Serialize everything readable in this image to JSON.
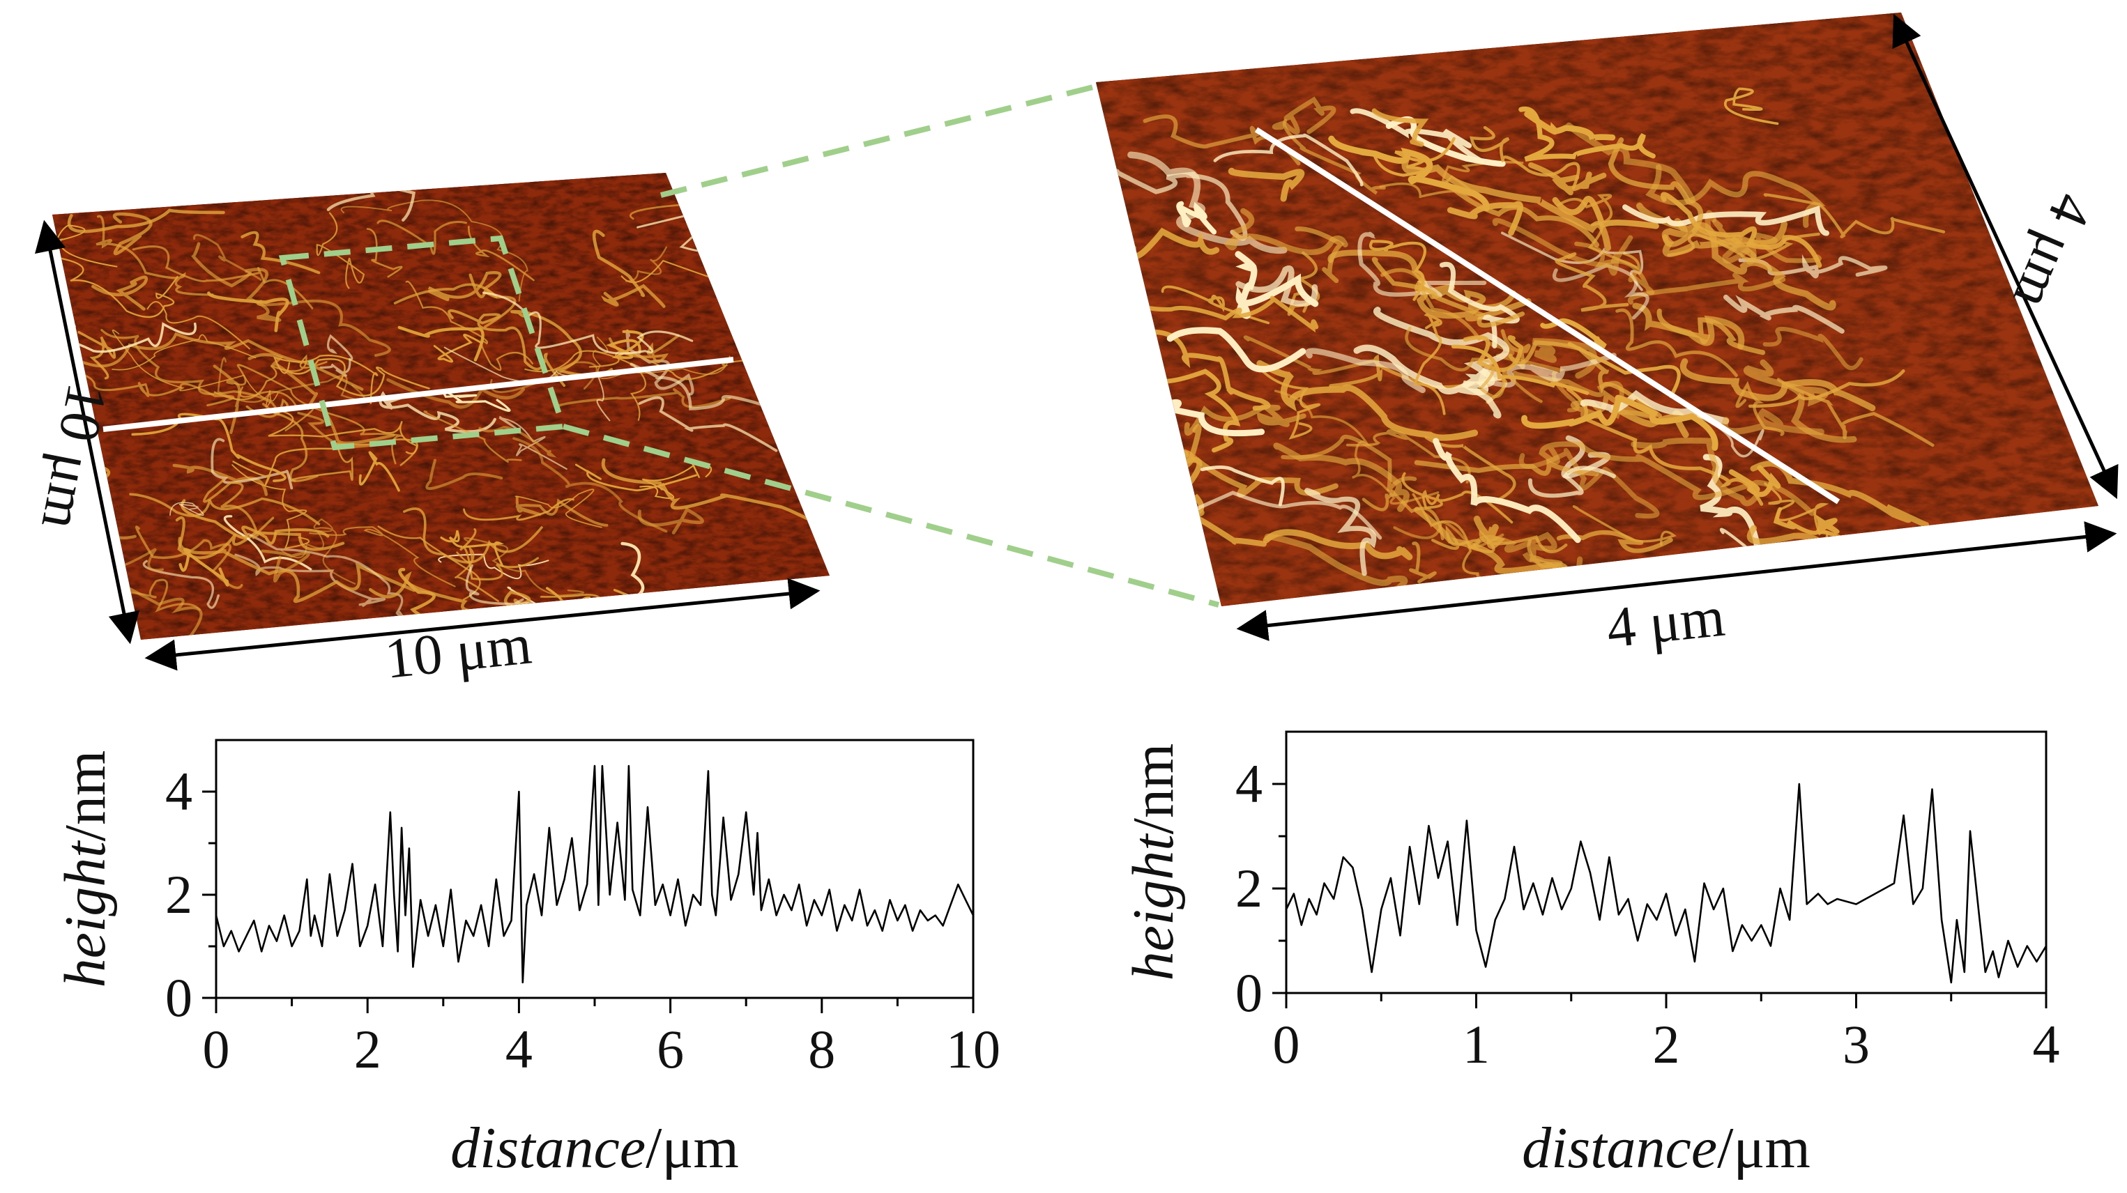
{
  "figure": {
    "left_scan": {
      "width_label": "10 μm",
      "height_label": "10 μm",
      "colors": {
        "dark": "#5a0f04",
        "mid": "#8e2a0c",
        "fiber": "#e0a23a",
        "highlight": "#ffe9b0"
      }
    },
    "right_scan": {
      "width_label": "4 μm",
      "height_label": "4 μm",
      "colors": {
        "dark": "#6a1606",
        "mid": "#9a3410",
        "fiber": "#e3a83e",
        "highlight": "#fff0c4"
      }
    },
    "zoom_box_color": "#9fcf8a",
    "profile_line_color": "#ffffff"
  },
  "chart_data": [
    {
      "type": "line",
      "title": "",
      "xlabel_italic": "distance",
      "xlabel_unit": "/μm",
      "ylabel_italic": "height",
      "ylabel_unit": "/nm",
      "xlim": [
        0,
        10
      ],
      "ylim": [
        0,
        5
      ],
      "xticks": [
        0,
        2,
        4,
        6,
        8,
        10
      ],
      "yticks": [
        0,
        2,
        4
      ],
      "series": [
        {
          "name": "profile-10um",
          "x": [
            0,
            0.1,
            0.2,
            0.3,
            0.4,
            0.5,
            0.6,
            0.7,
            0.8,
            0.9,
            1.0,
            1.1,
            1.2,
            1.25,
            1.3,
            1.4,
            1.5,
            1.6,
            1.7,
            1.8,
            1.9,
            2.0,
            2.1,
            2.2,
            2.3,
            2.35,
            2.4,
            2.45,
            2.5,
            2.55,
            2.6,
            2.7,
            2.8,
            2.9,
            3.0,
            3.1,
            3.2,
            3.3,
            3.4,
            3.5,
            3.6,
            3.7,
            3.8,
            3.9,
            4.0,
            4.05,
            4.1,
            4.2,
            4.3,
            4.4,
            4.5,
            4.6,
            4.7,
            4.8,
            4.9,
            5.0,
            5.05,
            5.1,
            5.2,
            5.3,
            5.4,
            5.45,
            5.5,
            5.6,
            5.7,
            5.8,
            5.9,
            6.0,
            6.1,
            6.2,
            6.3,
            6.4,
            6.5,
            6.55,
            6.6,
            6.7,
            6.8,
            6.9,
            7.0,
            7.1,
            7.15,
            7.2,
            7.3,
            7.4,
            7.5,
            7.6,
            7.7,
            7.8,
            7.9,
            8.0,
            8.1,
            8.2,
            8.3,
            8.4,
            8.5,
            8.6,
            8.7,
            8.8,
            8.9,
            9.0,
            9.1,
            9.2,
            9.3,
            9.4,
            9.5,
            9.6,
            9.7,
            9.8,
            9.9,
            10.0
          ],
          "y": [
            1.6,
            1.0,
            1.3,
            0.9,
            1.2,
            1.5,
            0.9,
            1.4,
            1.1,
            1.6,
            1.0,
            1.3,
            2.3,
            1.2,
            1.6,
            1.0,
            2.4,
            1.2,
            1.7,
            2.6,
            1.0,
            1.4,
            2.2,
            1.0,
            3.6,
            2.0,
            0.9,
            3.3,
            1.6,
            2.9,
            0.6,
            1.9,
            1.2,
            1.8,
            1.0,
            2.1,
            0.7,
            1.5,
            1.2,
            1.8,
            1.0,
            2.3,
            1.2,
            1.5,
            4.0,
            0.3,
            1.8,
            2.4,
            1.6,
            3.3,
            1.8,
            2.3,
            3.1,
            1.7,
            2.2,
            4.5,
            1.8,
            4.5,
            2.0,
            3.4,
            1.9,
            4.5,
            2.1,
            1.6,
            3.7,
            1.8,
            2.2,
            1.6,
            2.3,
            1.4,
            2.0,
            1.8,
            4.4,
            2.0,
            1.6,
            3.5,
            1.9,
            2.4,
            3.6,
            2.0,
            3.2,
            1.7,
            2.3,
            1.6,
            2.0,
            1.7,
            2.2,
            1.4,
            1.9,
            1.6,
            2.1,
            1.3,
            1.8,
            1.5,
            2.1,
            1.4,
            1.7,
            1.3,
            1.9,
            1.5,
            1.8,
            1.3,
            1.7,
            1.5,
            1.6,
            1.4,
            1.8,
            2.2,
            1.9,
            1.6
          ]
        }
      ]
    },
    {
      "type": "line",
      "title": "",
      "xlabel_italic": "distance",
      "xlabel_unit": "/μm",
      "ylabel_italic": "height",
      "ylabel_unit": "/nm",
      "xlim": [
        0,
        4
      ],
      "ylim": [
        0,
        5
      ],
      "xticks": [
        0,
        1,
        2,
        3,
        4
      ],
      "yticks": [
        0,
        2,
        4
      ],
      "series": [
        {
          "name": "profile-4um",
          "x": [
            0,
            0.04,
            0.08,
            0.12,
            0.16,
            0.2,
            0.25,
            0.3,
            0.35,
            0.4,
            0.45,
            0.5,
            0.55,
            0.6,
            0.65,
            0.7,
            0.75,
            0.8,
            0.85,
            0.9,
            0.95,
            1.0,
            1.05,
            1.1,
            1.15,
            1.2,
            1.25,
            1.3,
            1.35,
            1.4,
            1.45,
            1.5,
            1.55,
            1.6,
            1.65,
            1.7,
            1.75,
            1.8,
            1.85,
            1.9,
            1.95,
            2.0,
            2.05,
            2.1,
            2.15,
            2.2,
            2.25,
            2.3,
            2.35,
            2.4,
            2.45,
            2.5,
            2.55,
            2.6,
            2.65,
            2.7,
            2.74,
            2.8,
            2.85,
            2.9,
            3.0,
            3.1,
            3.2,
            3.25,
            3.3,
            3.35,
            3.4,
            3.45,
            3.5,
            3.53,
            3.57,
            3.6,
            3.65,
            3.68,
            3.72,
            3.75,
            3.8,
            3.85,
            3.9,
            3.95,
            4.0
          ],
          "y": [
            1.6,
            1.9,
            1.3,
            1.8,
            1.5,
            2.1,
            1.8,
            2.6,
            2.4,
            1.6,
            0.4,
            1.6,
            2.2,
            1.1,
            2.8,
            1.7,
            3.2,
            2.2,
            2.9,
            1.3,
            3.3,
            1.2,
            0.5,
            1.4,
            1.8,
            2.8,
            1.6,
            2.1,
            1.5,
            2.2,
            1.6,
            2.0,
            2.9,
            2.3,
            1.4,
            2.6,
            1.5,
            1.8,
            1.0,
            1.7,
            1.4,
            1.9,
            1.1,
            1.6,
            0.6,
            2.1,
            1.6,
            2.0,
            0.8,
            1.3,
            1.0,
            1.3,
            0.9,
            2.0,
            1.4,
            4.0,
            1.7,
            1.9,
            1.7,
            1.8,
            1.7,
            1.9,
            2.1,
            3.4,
            1.7,
            2.0,
            3.9,
            1.4,
            0.2,
            1.4,
            0.4,
            3.1,
            1.4,
            0.4,
            0.8,
            0.3,
            1.0,
            0.5,
            0.9,
            0.6,
            0.9
          ]
        }
      ]
    }
  ]
}
